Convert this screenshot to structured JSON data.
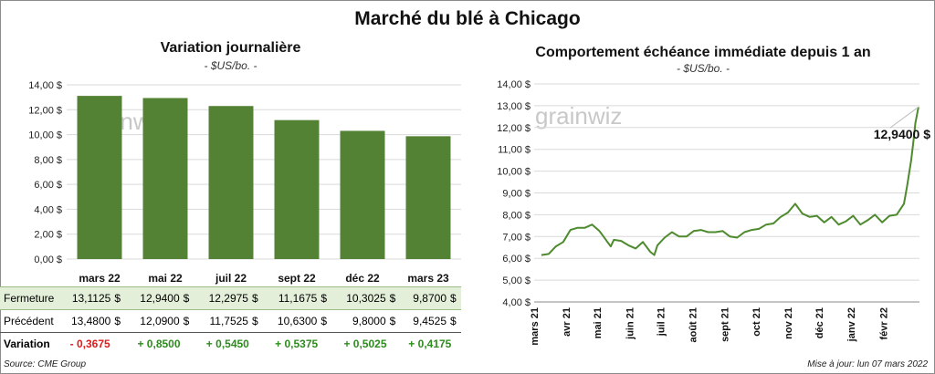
{
  "title": "Marché du blé à Chicago",
  "left_panel": {
    "title": "Variation  journalière",
    "subtitle": "- $US/bo. -",
    "table": {
      "rows": [
        {
          "label": "Fermeture",
          "values": [
            "13,1125",
            "12,9400",
            "12,2975",
            "11,1675",
            "10,3025",
            "9,8700"
          ]
        },
        {
          "label": "Précédent",
          "values": [
            "13,4800",
            "12,0900",
            "11,7525",
            "10,6300",
            "9,8000",
            "9,4525"
          ]
        },
        {
          "label": "Variation",
          "values": [
            "- 0,3675",
            "+ 0,8500",
            "+ 0,5450",
            "+ 0,5375",
            "+ 0,5025",
            "+ 0,4175"
          ]
        }
      ],
      "currency": "$"
    }
  },
  "right_panel": {
    "title": "Comportement  échéance immédiate depuis 1 an",
    "subtitle": "- $US/bo. -",
    "last_value_label": "12,9400 $"
  },
  "watermark": "grainwiz",
  "footer": {
    "source": "Source: CME Group",
    "updated": "Mise à jour: lun 07 mars 2022"
  },
  "colors": {
    "bar": "#548235",
    "line": "#4e8a2e",
    "negative": "#e21b1b",
    "positive": "#2e8b1e"
  },
  "chart_data": [
    {
      "type": "bar",
      "title": "Variation  journalière",
      "subtitle": "- $US/bo. -",
      "categories": [
        "mars 22",
        "mai 22",
        "juil 22",
        "sept 22",
        "déc 22",
        "mars 23"
      ],
      "values": [
        13.1125,
        12.94,
        12.2975,
        11.1675,
        10.3025,
        9.87
      ],
      "ylim": [
        0,
        14
      ],
      "yticks": [
        "0,00 $",
        "2,00 $",
        "4,00 $",
        "6,00 $",
        "8,00 $",
        "10,00 $",
        "12,00 $",
        "14,00 $"
      ],
      "grid": true
    },
    {
      "type": "line",
      "title": "Comportement  échéance immédiate depuis 1 an",
      "subtitle": "- $US/bo. -",
      "ylim": [
        4,
        14
      ],
      "yticks": [
        "4,00 $",
        "5,00 $",
        "6,00 $",
        "7,00 $",
        "8,00 $",
        "9,00 $",
        "10,00 $",
        "11,00 $",
        "12,00 $",
        "13,00 $",
        "14,00 $"
      ],
      "xticks": [
        "mars 21",
        "avr 21",
        "mai 21",
        "juin 21",
        "juil 21",
        "août 21",
        "sept 21",
        "oct 21",
        "nov 21",
        "déc 21",
        "janv 22",
        "févr 22"
      ],
      "x": [
        "2021-03-08",
        "2021-03-15",
        "2021-03-22",
        "2021-03-29",
        "2021-04-05",
        "2021-04-12",
        "2021-04-19",
        "2021-04-26",
        "2021-05-03",
        "2021-05-07",
        "2021-05-10",
        "2021-05-14",
        "2021-05-17",
        "2021-05-24",
        "2021-05-31",
        "2021-06-07",
        "2021-06-14",
        "2021-06-21",
        "2021-06-25",
        "2021-06-28",
        "2021-07-05",
        "2021-07-12",
        "2021-07-19",
        "2021-07-26",
        "2021-08-02",
        "2021-08-09",
        "2021-08-16",
        "2021-08-23",
        "2021-08-30",
        "2021-09-06",
        "2021-09-13",
        "2021-09-20",
        "2021-09-27",
        "2021-10-04",
        "2021-10-11",
        "2021-10-18",
        "2021-10-25",
        "2021-11-01",
        "2021-11-08",
        "2021-11-15",
        "2021-11-22",
        "2021-11-29",
        "2021-12-06",
        "2021-12-13",
        "2021-12-20",
        "2021-12-27",
        "2022-01-03",
        "2022-01-10",
        "2022-01-17",
        "2022-01-24",
        "2022-01-31",
        "2022-02-07",
        "2022-02-14",
        "2022-02-21",
        "2022-02-24",
        "2022-02-28",
        "2022-03-02",
        "2022-03-04",
        "2022-03-07"
      ],
      "values": [
        6.15,
        6.2,
        6.55,
        6.75,
        7.3,
        7.4,
        7.4,
        7.55,
        7.25,
        7.0,
        6.8,
        6.55,
        6.85,
        6.8,
        6.6,
        6.45,
        6.75,
        6.3,
        6.15,
        6.6,
        6.95,
        7.2,
        7.0,
        7.0,
        7.25,
        7.3,
        7.2,
        7.2,
        7.25,
        7.0,
        6.95,
        7.2,
        7.3,
        7.35,
        7.55,
        7.6,
        7.9,
        8.1,
        8.5,
        8.05,
        7.9,
        7.95,
        7.65,
        7.9,
        7.55,
        7.7,
        7.95,
        7.55,
        7.75,
        8.0,
        7.65,
        7.95,
        8.0,
        8.5,
        9.3,
        10.5,
        11.3,
        12.2,
        12.94
      ],
      "grid": true
    }
  ]
}
